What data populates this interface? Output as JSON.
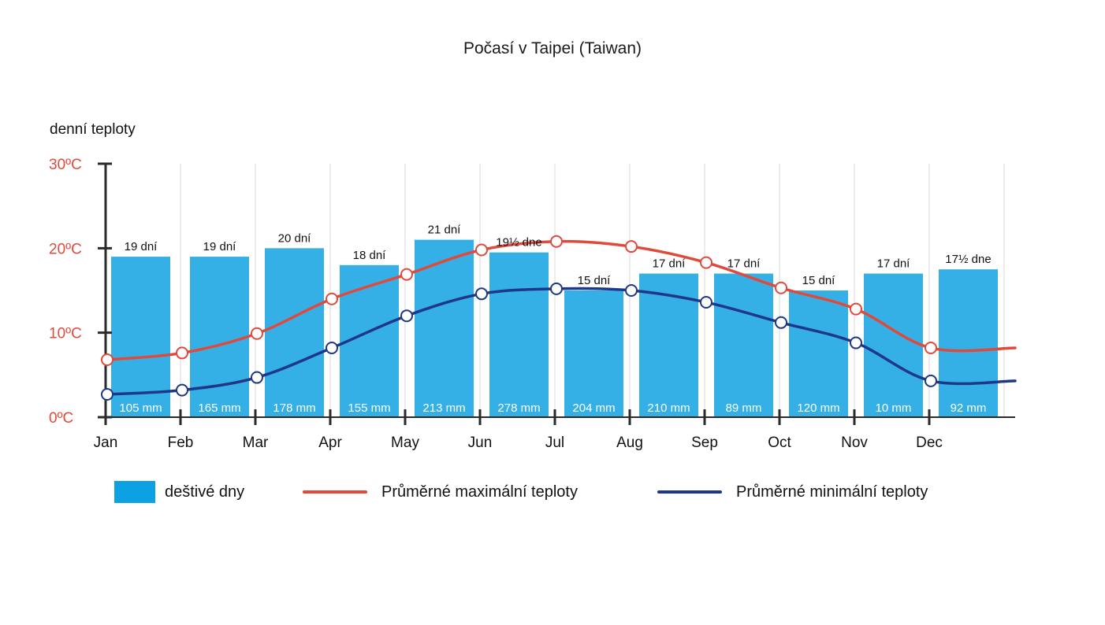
{
  "chart_data": {
    "type": "bar",
    "title": "Počasí v Taipei (Taiwan)",
    "ylabel": "denní teploty",
    "ylim": [
      0,
      30
    ],
    "ytick_labels": [
      "0ºC",
      "10ºC",
      "20ºC",
      "30ºC"
    ],
    "ytick_values": [
      0,
      10,
      20,
      30
    ],
    "categories": [
      "Jan",
      "Feb",
      "Mar",
      "Apr",
      "May",
      "Jun",
      "Jul",
      "Aug",
      "Sep",
      "Oct",
      "Nov",
      "Dec"
    ],
    "series": [
      {
        "name": "deštivé dny",
        "kind": "bar",
        "values": [
          19,
          19,
          20,
          18,
          21,
          19.5,
          15,
          17,
          17,
          15,
          17,
          17.5
        ],
        "day_labels": [
          "19 dní",
          "19 dní",
          "20 dní",
          "18 dní",
          "21 dní",
          "19½ dne",
          "15 dní",
          "17 dní",
          "17 dní",
          "15 dní",
          "17 dní",
          "17½ dne"
        ],
        "mm_labels": [
          "105 mm",
          "165 mm",
          "178 mm",
          "155 mm",
          "213 mm",
          "278 mm",
          "204 mm",
          "210 mm",
          "89 mm",
          "120 mm",
          "10 mm",
          "92 mm"
        ],
        "color": "#35b0e6"
      },
      {
        "name": "Průměrné maximální teploty",
        "kind": "line",
        "values": [
          6.8,
          7.6,
          9.9,
          14.0,
          16.9,
          19.8,
          20.8,
          20.2,
          18.3,
          15.3,
          12.8,
          8.2
        ],
        "color": "#e04a3c"
      },
      {
        "name": "Průměrné minimální teploty",
        "kind": "line",
        "values": [
          2.7,
          3.2,
          4.7,
          8.2,
          12.0,
          14.6,
          15.2,
          15.0,
          13.6,
          11.2,
          8.8,
          4.3
        ],
        "color": "#1f3787"
      }
    ],
    "grid": true,
    "legend": "bottom"
  },
  "legend": {
    "rain": "deštivé dny",
    "max": "Průměrné maximální teploty",
    "min": "Průměrné minimální teploty"
  },
  "colors": {
    "bar": "#35b0e6",
    "legend_bar": "#0ba1e2",
    "max_line": "#e04a3c",
    "min_line": "#1f3787",
    "axis": "#2a2a2a",
    "grid": "#d9d9d9",
    "tick_text": "#e04a3c"
  }
}
